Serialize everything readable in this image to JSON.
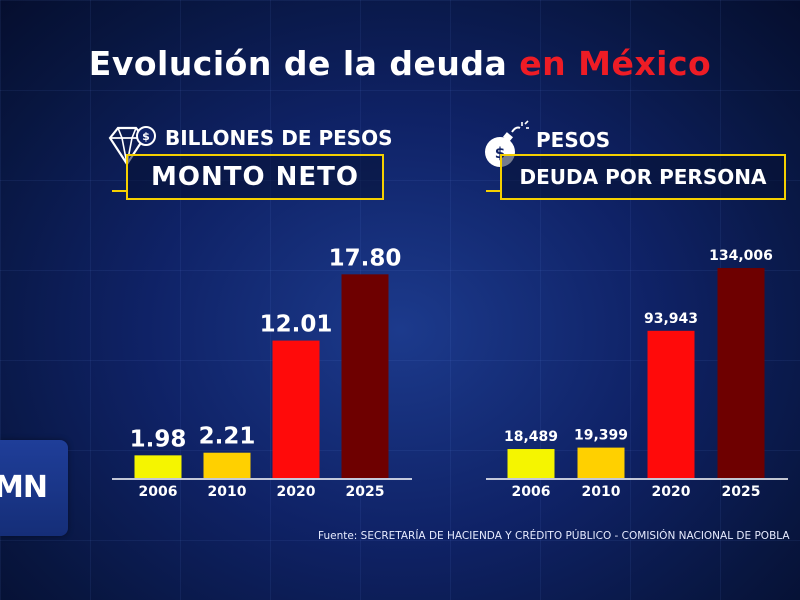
{
  "title": {
    "main": "Evolución de la deuda ",
    "highlight": "en México"
  },
  "colors": {
    "yellow": "#f5f500",
    "gold": "#ffd000",
    "red": "#ff0a0a",
    "maroon": "#6e0000",
    "accent_red": "#ee1c25",
    "box_border": "#f5d000"
  },
  "left_panel": {
    "icon": "diamond-money-icon",
    "unit": "BILLONES DE PESOS",
    "label": "MONTO NETO"
  },
  "right_panel": {
    "icon": "money-bomb-icon",
    "unit": "PESOS",
    "label": "DEUDA POR PERSONA"
  },
  "logo": {
    "text": "MN"
  },
  "source": "Fuente: SECRETARÍA DE HACIENDA Y CRÉDITO PÚBLICO - COMISIÓN NACIONAL DE POBLA",
  "chart_data": [
    {
      "type": "bar",
      "categories": [
        "2006",
        "2010",
        "2020",
        "2025"
      ],
      "values": [
        1.98,
        2.21,
        12.01,
        17.8
      ],
      "value_labels": [
        "1.98",
        "2.21",
        "12.01",
        "17.80"
      ],
      "bar_colors": [
        "#f5f500",
        "#ffd000",
        "#ff0a0a",
        "#6e0000"
      ],
      "title": "",
      "xlabel": "",
      "ylabel": "BILLONES DE PESOS",
      "ylim": [
        0,
        21.5
      ],
      "grid": false
    },
    {
      "type": "bar",
      "categories": [
        "2006",
        "2010",
        "2020",
        "2025"
      ],
      "values": [
        18489,
        19399,
        93943,
        134006
      ],
      "value_labels": [
        "18,489",
        "19,399",
        "93,943",
        "134,006"
      ],
      "bar_colors": [
        "#f5f500",
        "#ffd000",
        "#ff0a0a",
        "#6e0000"
      ],
      "title": "",
      "xlabel": "",
      "ylabel": "PESOS",
      "ylim": [
        0,
        157000
      ],
      "grid": false
    }
  ]
}
